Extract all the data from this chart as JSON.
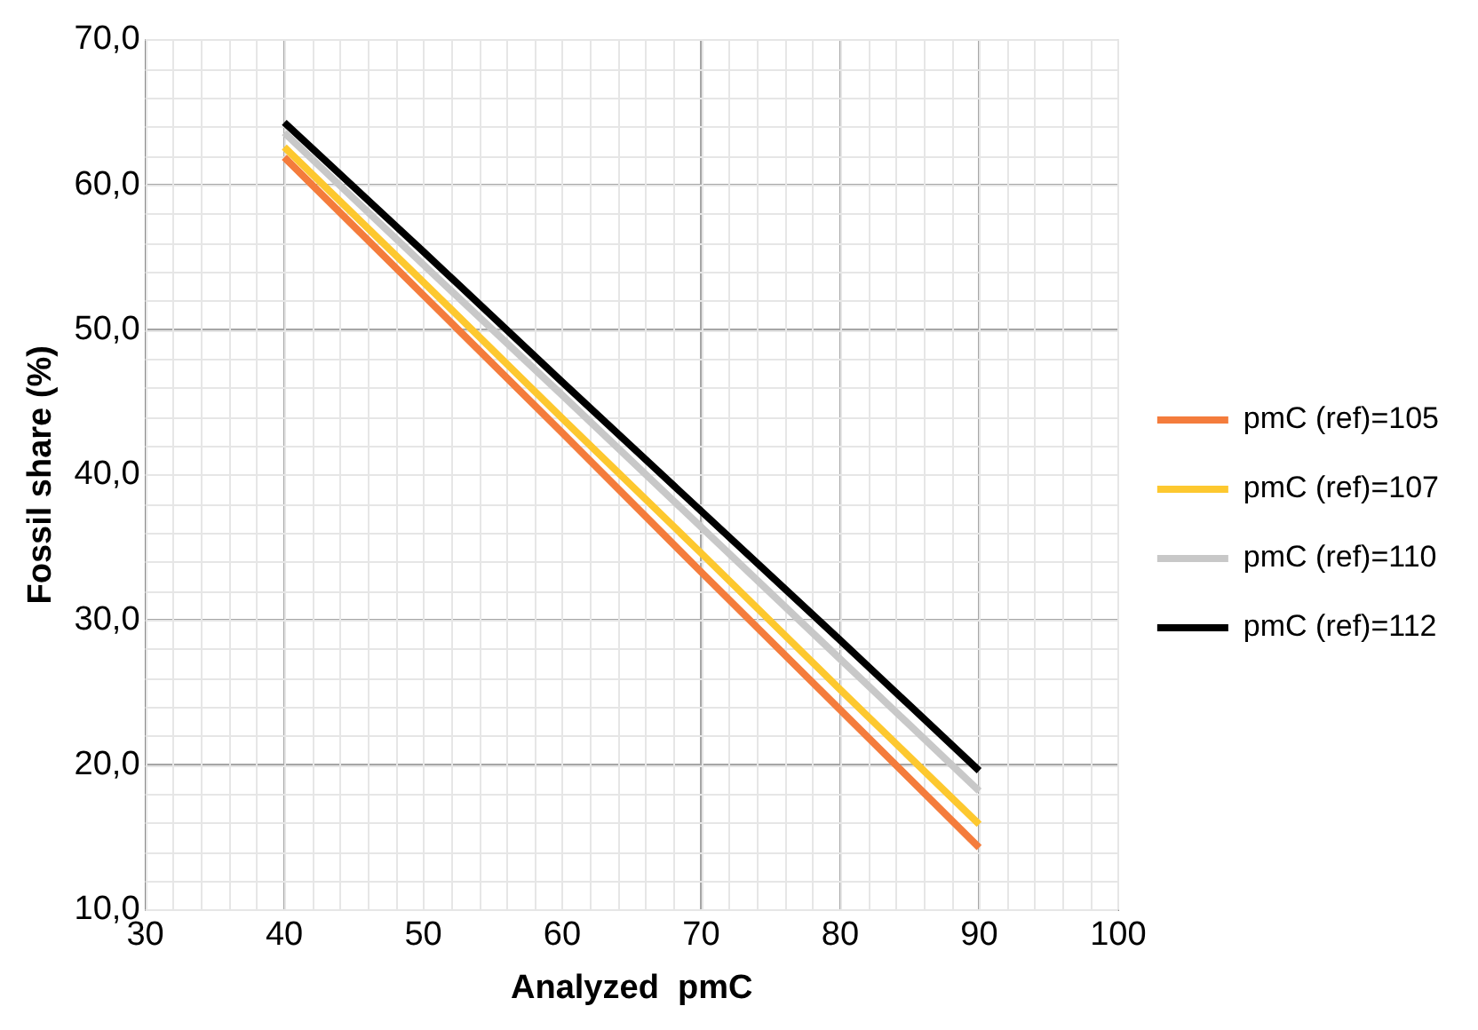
{
  "chart_data": {
    "type": "line",
    "xlabel": "Analyzed  pmC",
    "ylabel": "Fossil share (%)",
    "x": [
      40,
      50,
      60,
      70,
      80,
      90
    ],
    "series": [
      {
        "name": "pmC (ref)=105",
        "color": "#f47c3c",
        "values": [
          61.9,
          52.4,
          42.9,
          33.3,
          23.8,
          14.3
        ]
      },
      {
        "name": "pmC (ref)=107",
        "color": "#fdc82f",
        "values": [
          62.6,
          53.3,
          43.9,
          34.6,
          25.2,
          15.9
        ]
      },
      {
        "name": "pmC (ref)=110",
        "color": "#c8c8c8",
        "values": [
          63.6,
          54.5,
          45.5,
          36.4,
          27.3,
          18.2
        ]
      },
      {
        "name": "pmC (ref)=112",
        "color": "#000000",
        "values": [
          64.3,
          55.4,
          46.4,
          37.5,
          28.6,
          19.6
        ]
      }
    ],
    "xlim": [
      30,
      100
    ],
    "xticks": [
      30,
      40,
      50,
      60,
      70,
      80,
      90,
      100
    ],
    "ylim": [
      10,
      70
    ],
    "yticks": [
      {
        "value": 10,
        "label": "10,0"
      },
      {
        "value": 20,
        "label": "20,0"
      },
      {
        "value": 30,
        "label": "30,0"
      },
      {
        "value": 40,
        "label": "40,0"
      },
      {
        "value": 50,
        "label": "50,0"
      },
      {
        "value": 60,
        "label": "60,0"
      },
      {
        "value": 70,
        "label": "70,0"
      }
    ],
    "grid": true,
    "legend": "right",
    "marker": "none",
    "line_style": "solid"
  }
}
